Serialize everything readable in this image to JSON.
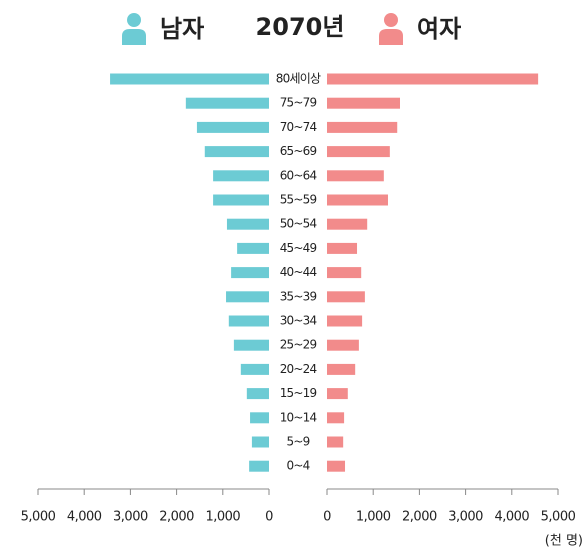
{
  "chart_data": {
    "type": "pyramid",
    "title": "2070년",
    "categories": [
      "80세이상",
      "75~79",
      "70~74",
      "65~69",
      "60~64",
      "55~59",
      "50~54",
      "45~49",
      "40~44",
      "35~39",
      "30~34",
      "25~29",
      "20~24",
      "15~19",
      "10~14",
      "5~9",
      "0~4"
    ],
    "series": [
      {
        "name": "남자",
        "color": "#6ccbd4",
        "values": [
          3440,
          1800,
          1560,
          1390,
          1210,
          1210,
          910,
          690,
          820,
          930,
          870,
          760,
          610,
          480,
          410,
          370,
          430
        ]
      },
      {
        "name": "여자",
        "color": "#f28b8b",
        "values": [
          4570,
          1580,
          1520,
          1360,
          1230,
          1320,
          870,
          650,
          740,
          820,
          760,
          690,
          610,
          450,
          370,
          350,
          390
        ]
      }
    ],
    "xlim": [
      0,
      5000
    ],
    "xticks": [
      0,
      {
        "value": 1000,
        "label": "1,000"
      },
      {
        "value": 2000,
        "label": "2,000"
      },
      {
        "value": 3000,
        "label": "3,000"
      },
      {
        "value": 4000,
        "label": "4,000"
      },
      {
        "value": 5000,
        "label": "5,000"
      }
    ],
    "x_axis_label": "(천 명)"
  }
}
